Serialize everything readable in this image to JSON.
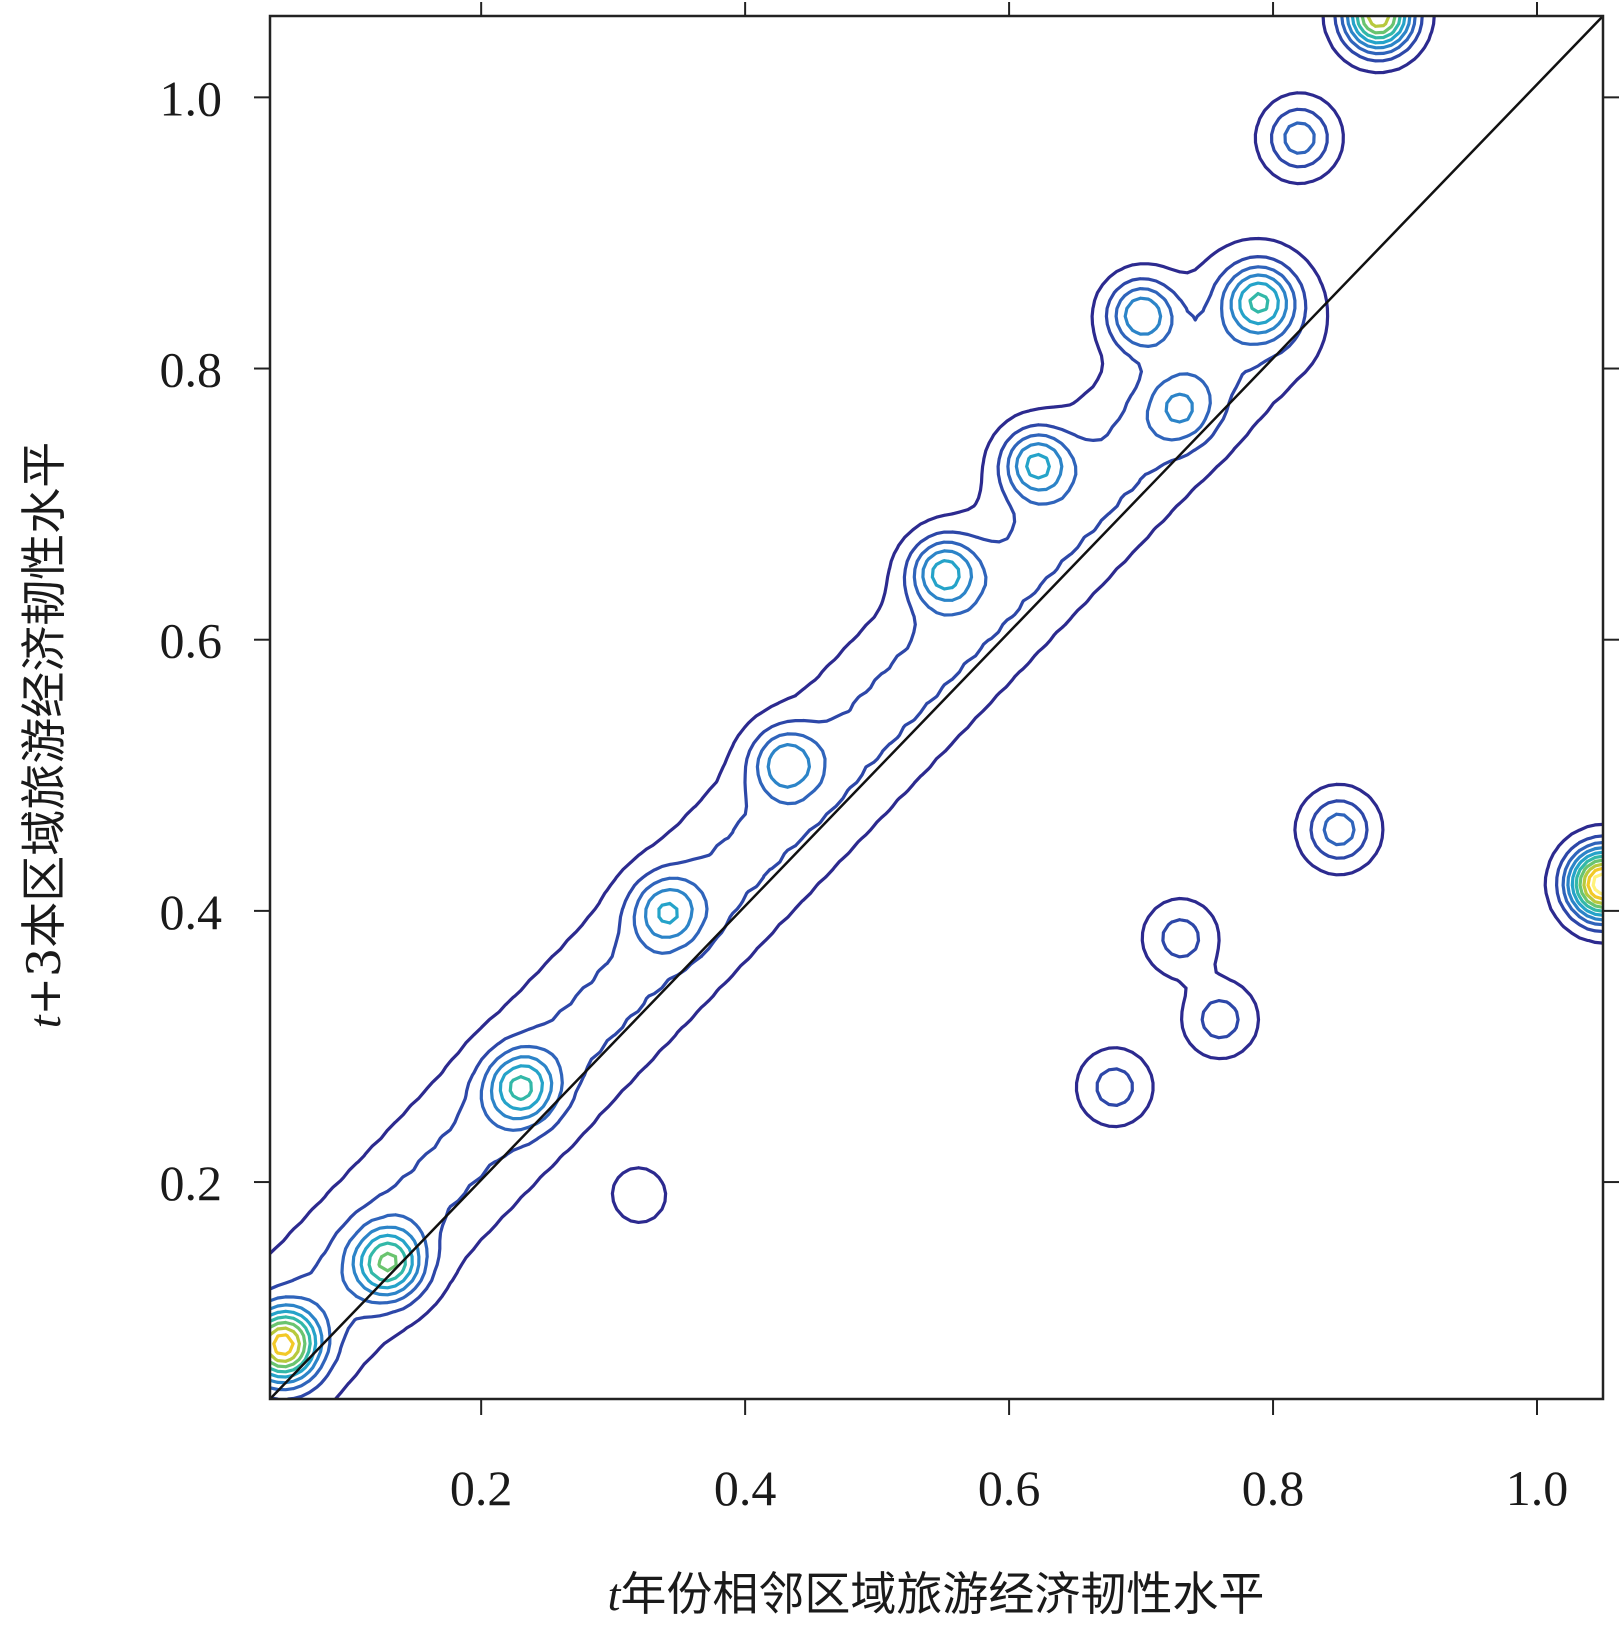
{
  "chart_data": {
    "type": "contour",
    "xlabel_var": "t",
    "xlabel_text": "年份相邻区域旅游经济韧性水平",
    "ylabel_var": "t",
    "ylabel_text": "+3本区域旅游经济韧性水平",
    "xlim": [
      0.04,
      1.05
    ],
    "ylim": [
      0.04,
      1.06
    ],
    "x_ticks": [
      "0.2",
      "0.4",
      "0.6",
      "0.8",
      "1.0"
    ],
    "x_tick_values": [
      0.2,
      0.4,
      0.6,
      0.8,
      1.0
    ],
    "y_ticks": [
      "0.2",
      "0.4",
      "0.6",
      "0.8",
      "1.0"
    ],
    "y_tick_values": [
      0.2,
      0.4,
      0.6,
      0.8,
      1.0
    ],
    "reference_line": {
      "type": "diagonal",
      "from": [
        0.04,
        0.04
      ],
      "to": [
        1.05,
        1.06
      ]
    },
    "levels_colors": [
      "#2c2a8f",
      "#2d47a8",
      "#2f64bb",
      "#2c84c8",
      "#25a3c9",
      "#33b8a8",
      "#6ac46f",
      "#b7c93d",
      "#f2c928",
      "#fff27a"
    ],
    "density_peaks": [
      {
        "x": 0.05,
        "y": 0.08,
        "levels": 7
      },
      {
        "x": 0.13,
        "y": 0.14,
        "levels": 5
      },
      {
        "x": 0.23,
        "y": 0.27,
        "levels": 4
      },
      {
        "x": 0.34,
        "y": 0.4,
        "levels": 3
      },
      {
        "x": 0.43,
        "y": 0.51,
        "levels": 3
      },
      {
        "x": 0.55,
        "y": 0.65,
        "levels": 4
      },
      {
        "x": 0.62,
        "y": 0.73,
        "levels": 4
      },
      {
        "x": 0.7,
        "y": 0.84,
        "levels": 4
      },
      {
        "x": 0.79,
        "y": 0.85,
        "levels": 4
      },
      {
        "x": 0.73,
        "y": 0.77,
        "levels": 2
      },
      {
        "x": 0.82,
        "y": 0.97,
        "levels": 3
      },
      {
        "x": 0.88,
        "y": 1.06,
        "levels": 8
      },
      {
        "x": 1.05,
        "y": 0.42,
        "levels": 10
      },
      {
        "x": 0.85,
        "y": 0.46,
        "levels": 3
      },
      {
        "x": 0.73,
        "y": 0.38,
        "levels": 2
      },
      {
        "x": 0.76,
        "y": 0.32,
        "levels": 2
      },
      {
        "x": 0.68,
        "y": 0.27,
        "levels": 2
      },
      {
        "x": 0.32,
        "y": 0.19,
        "levels": 1
      }
    ]
  }
}
